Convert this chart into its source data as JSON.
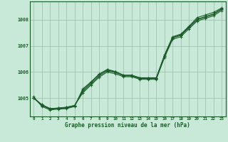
{
  "xlabel": "Graphe pression niveau de la mer (hPa)",
  "xlim": [
    -0.5,
    23.5
  ],
  "ylim": [
    1004.3,
    1008.7
  ],
  "yticks": [
    1005,
    1006,
    1007,
    1008
  ],
  "xticks": [
    0,
    1,
    2,
    3,
    4,
    5,
    6,
    7,
    8,
    9,
    10,
    11,
    12,
    13,
    14,
    15,
    16,
    17,
    18,
    19,
    20,
    21,
    22,
    23
  ],
  "bg_color": "#c8e8d8",
  "grid_color": "#99bbaa",
  "line_color": "#1a5c28",
  "series1": {
    "x": [
      0,
      1,
      2,
      3,
      4,
      5,
      6,
      7,
      8,
      9,
      10,
      11,
      12,
      13,
      14,
      15,
      16,
      17,
      18,
      19,
      20,
      21,
      22,
      23
    ],
    "y": [
      1005.0,
      1004.75,
      1004.6,
      1004.62,
      1004.65,
      1004.72,
      1005.2,
      1005.5,
      1005.8,
      1006.0,
      1005.93,
      1005.82,
      1005.82,
      1005.72,
      1005.72,
      1005.72,
      1006.55,
      1007.25,
      1007.35,
      1007.65,
      1007.95,
      1008.05,
      1008.15,
      1008.35
    ]
  },
  "series2": {
    "x": [
      0,
      1,
      2,
      3,
      4,
      5,
      6,
      7,
      8,
      9,
      10,
      11,
      12,
      13,
      14,
      15,
      16,
      17,
      18,
      19,
      20,
      21,
      22,
      23
    ],
    "y": [
      1005.0,
      1004.75,
      1004.6,
      1004.62,
      1004.65,
      1004.72,
      1005.25,
      1005.55,
      1005.85,
      1006.05,
      1005.98,
      1005.87,
      1005.87,
      1005.77,
      1005.77,
      1005.77,
      1006.6,
      1007.3,
      1007.4,
      1007.7,
      1008.0,
      1008.1,
      1008.2,
      1008.4
    ]
  },
  "series3": {
    "x": [
      0,
      1,
      2,
      3,
      4,
      5,
      6,
      7,
      8,
      9,
      10,
      11,
      12,
      13,
      14,
      15,
      16,
      17,
      18,
      19,
      20,
      21,
      22,
      23
    ],
    "y": [
      1005.0,
      1004.72,
      1004.58,
      1004.6,
      1004.62,
      1004.7,
      1005.3,
      1005.6,
      1005.9,
      1006.08,
      1006.0,
      1005.85,
      1005.85,
      1005.75,
      1005.75,
      1005.75,
      1006.62,
      1007.32,
      1007.42,
      1007.72,
      1008.02,
      1008.12,
      1008.22,
      1008.42
    ]
  },
  "series4": {
    "x": [
      0,
      1,
      2,
      3,
      4,
      5,
      6,
      7,
      8,
      9,
      10,
      11,
      12,
      13,
      14,
      15,
      16,
      17,
      18,
      19,
      20,
      21,
      22,
      23
    ],
    "y": [
      1005.05,
      1004.68,
      1004.55,
      1004.58,
      1004.6,
      1004.68,
      1005.35,
      1005.62,
      1005.92,
      1006.1,
      1006.02,
      1005.88,
      1005.88,
      1005.78,
      1005.78,
      1005.78,
      1006.65,
      1007.35,
      1007.45,
      1007.75,
      1008.08,
      1008.18,
      1008.28,
      1008.45
    ]
  }
}
